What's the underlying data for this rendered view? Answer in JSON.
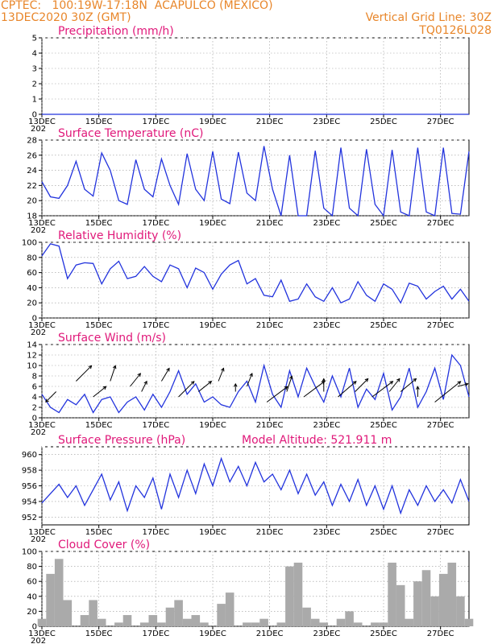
{
  "header": {
    "line1_left": "CPTEC:   100:19W-17:18N  ACAPULCO (MEXICO)",
    "line2_left": "13DEC2020 30Z (GMT)",
    "line2_right": "Vertical Grid Line: 30Z",
    "line3_right": "TQ0126L028"
  },
  "x_tick_labels": [
    "13DEC",
    "15DEC",
    "17DEC",
    "19DEC",
    "21DEC",
    "23DEC",
    "25DEC",
    "27DEC"
  ],
  "x_year_fragment": "202",
  "colors": {
    "line": "#2233dd",
    "title": "#e0197a",
    "header": "#e8862a",
    "bar": "#aaaaaa",
    "grid": "#999999"
  },
  "chart_data": [
    {
      "type": "line",
      "title": "Precipitation (mm/h)",
      "ylim": [
        0,
        5
      ],
      "yticks": [
        0,
        1,
        2,
        3,
        4,
        5
      ],
      "x": [
        13,
        28
      ],
      "values": [
        0,
        0
      ]
    },
    {
      "type": "line",
      "title": "Surface Temperature (nC)",
      "ylim": [
        18,
        28
      ],
      "yticks": [
        18,
        20,
        22,
        24,
        26,
        28
      ],
      "x": [
        13.0,
        13.3,
        13.6,
        13.9,
        14.2,
        14.5,
        14.8,
        15.1,
        15.4,
        15.7,
        16.0,
        16.3,
        16.6,
        16.9,
        17.2,
        17.5,
        17.8,
        18.1,
        18.4,
        18.7,
        19.0,
        19.3,
        19.6,
        19.9,
        20.2,
        20.5,
        20.8,
        21.1,
        21.4,
        21.7,
        22.0,
        22.3,
        22.6,
        22.9,
        23.2,
        23.5,
        23.8,
        24.1,
        24.4,
        24.7,
        25.0,
        25.3,
        25.6,
        25.9,
        26.2,
        26.5,
        26.8,
        27.1,
        27.4,
        27.7,
        28.0
      ],
      "values": [
        22.5,
        20.5,
        20.3,
        22.0,
        25.2,
        21.5,
        20.6,
        26.3,
        24.0,
        20.0,
        19.5,
        25.4,
        21.5,
        20.5,
        25.5,
        22.0,
        19.5,
        26.2,
        21.5,
        20.0,
        26.5,
        20.2,
        19.6,
        26.4,
        21.0,
        20.0,
        27.2,
        21.5,
        18.0,
        26.0,
        18.0,
        17.8,
        26.6,
        19.0,
        18.0,
        27.0,
        19.0,
        18.0,
        26.8,
        19.5,
        18.0,
        26.7,
        18.5,
        18.0,
        27.0,
        18.5,
        18.0,
        27.0,
        18.3,
        18.2,
        26.5
      ]
    },
    {
      "type": "line",
      "title": "Relative Humidity (%)",
      "ylim": [
        0,
        100
      ],
      "yticks": [
        0,
        20,
        40,
        60,
        80,
        100
      ],
      "x": [
        13.0,
        13.3,
        13.6,
        13.9,
        14.2,
        14.5,
        14.8,
        15.1,
        15.4,
        15.7,
        16.0,
        16.3,
        16.6,
        16.9,
        17.2,
        17.5,
        17.8,
        18.1,
        18.4,
        18.7,
        19.0,
        19.3,
        19.6,
        19.9,
        20.2,
        20.5,
        20.8,
        21.1,
        21.4,
        21.7,
        22.0,
        22.3,
        22.6,
        22.9,
        23.2,
        23.5,
        23.8,
        24.1,
        24.4,
        24.7,
        25.0,
        25.3,
        25.6,
        25.9,
        26.2,
        26.5,
        26.8,
        27.1,
        27.4,
        27.7,
        28.0
      ],
      "values": [
        82,
        98,
        95,
        52,
        70,
        73,
        72,
        45,
        65,
        75,
        52,
        55,
        68,
        55,
        48,
        70,
        65,
        40,
        66,
        60,
        38,
        58,
        70,
        76,
        45,
        52,
        30,
        28,
        50,
        22,
        25,
        45,
        28,
        22,
        40,
        20,
        25,
        48,
        30,
        22,
        45,
        38,
        20,
        46,
        42,
        25,
        35,
        42,
        25,
        38,
        22
      ]
    },
    {
      "type": "line",
      "title": "Surface Wind (m/s)",
      "ylim": [
        0,
        14
      ],
      "yticks": [
        0,
        2,
        4,
        6,
        8,
        10,
        12,
        14
      ],
      "x": [
        13.0,
        13.3,
        13.6,
        13.9,
        14.2,
        14.5,
        14.8,
        15.1,
        15.4,
        15.7,
        16.0,
        16.3,
        16.6,
        16.9,
        17.2,
        17.5,
        17.8,
        18.1,
        18.4,
        18.7,
        19.0,
        19.3,
        19.6,
        19.9,
        20.2,
        20.5,
        20.8,
        21.1,
        21.4,
        21.7,
        22.0,
        22.3,
        22.6,
        22.9,
        23.2,
        23.5,
        23.8,
        24.1,
        24.4,
        24.7,
        25.0,
        25.3,
        25.6,
        25.9,
        26.2,
        26.5,
        26.8,
        27.1,
        27.4,
        27.7,
        28.0
      ],
      "values": [
        4.5,
        2.0,
        1.0,
        3.5,
        2.5,
        4.5,
        1.0,
        3.5,
        4.0,
        1.0,
        3.0,
        4.0,
        1.5,
        4.5,
        2.0,
        5.0,
        9.0,
        4.5,
        6.5,
        3.0,
        4.0,
        2.5,
        2.0,
        5.0,
        7.0,
        3.0,
        10.0,
        4.5,
        2.0,
        9.0,
        4.0,
        9.5,
        6.0,
        3.0,
        8.0,
        4.0,
        9.5,
        2.0,
        5.5,
        3.5,
        8.5,
        1.5,
        4.0,
        9.5,
        2.0,
        5.0,
        9.5,
        3.5,
        12.0,
        10.0,
        4.0
      ]
    },
    {
      "type": "line",
      "title": "Surface Pressure (hPa)",
      "annotation": "Model Altitude: 521.911 m",
      "ylim": [
        951,
        961
      ],
      "yticks": [
        952,
        954,
        956,
        958,
        960
      ],
      "x": [
        13.0,
        13.3,
        13.6,
        13.9,
        14.2,
        14.5,
        14.8,
        15.1,
        15.4,
        15.7,
        16.0,
        16.3,
        16.6,
        16.9,
        17.2,
        17.5,
        17.8,
        18.1,
        18.4,
        18.7,
        19.0,
        19.3,
        19.6,
        19.9,
        20.2,
        20.5,
        20.8,
        21.1,
        21.4,
        21.7,
        22.0,
        22.3,
        22.6,
        22.9,
        23.2,
        23.5,
        23.8,
        24.1,
        24.4,
        24.7,
        25.0,
        25.3,
        25.6,
        25.9,
        26.2,
        26.5,
        26.8,
        27.1,
        27.4,
        27.7,
        28.0
      ],
      "values": [
        953.8,
        955.0,
        956.2,
        954.5,
        956.0,
        953.5,
        955.5,
        957.5,
        954.2,
        956.5,
        952.8,
        956.0,
        954.5,
        957.0,
        953.0,
        957.5,
        954.5,
        958.0,
        955.0,
        958.8,
        956.0,
        959.5,
        956.5,
        958.5,
        956.0,
        959.0,
        956.5,
        957.5,
        955.5,
        958.0,
        955.0,
        957.5,
        954.8,
        956.5,
        953.5,
        956.2,
        954.0,
        956.8,
        953.5,
        956.0,
        953.0,
        956.0,
        952.5,
        955.5,
        953.5,
        956.0,
        954.0,
        955.5,
        953.8,
        956.8,
        954.0
      ]
    },
    {
      "type": "bar",
      "title": "Cloud Cover (%)",
      "ylim": [
        0,
        100
      ],
      "yticks": [
        0,
        20,
        40,
        60,
        80,
        100
      ],
      "x": [
        13.0,
        13.3,
        13.6,
        13.9,
        14.2,
        14.5,
        14.8,
        15.1,
        15.4,
        15.7,
        16.0,
        16.3,
        16.6,
        16.9,
        17.2,
        17.5,
        17.8,
        18.1,
        18.4,
        18.7,
        19.0,
        19.3,
        19.6,
        19.9,
        20.2,
        20.5,
        20.8,
        21.1,
        21.4,
        21.7,
        22.0,
        22.3,
        22.6,
        22.9,
        23.2,
        23.5,
        23.8,
        24.1,
        24.4,
        24.7,
        25.0,
        25.3,
        25.6,
        25.9,
        26.2,
        26.5,
        26.8,
        27.1,
        27.4,
        27.7,
        28.0
      ],
      "values": [
        10,
        70,
        90,
        35,
        0,
        15,
        35,
        10,
        0,
        5,
        15,
        0,
        5,
        15,
        5,
        25,
        35,
        10,
        15,
        5,
        0,
        30,
        45,
        0,
        5,
        5,
        10,
        0,
        5,
        80,
        85,
        25,
        10,
        5,
        0,
        10,
        20,
        5,
        0,
        5,
        5,
        85,
        55,
        10,
        60,
        75,
        40,
        70,
        85,
        40,
        10
      ]
    }
  ]
}
